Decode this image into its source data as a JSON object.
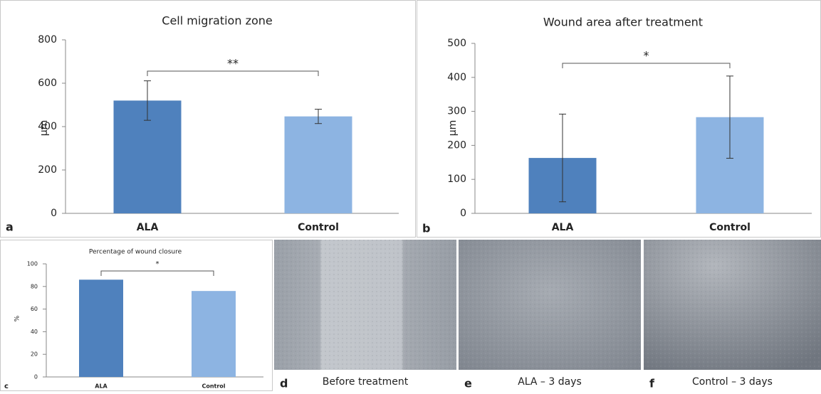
{
  "chart_data": [
    {
      "type": "bar",
      "title": "Cell migration zone",
      "y_label": "µm",
      "panel_label": "a",
      "categories": [
        "ALA",
        "Control"
      ],
      "values": [
        520,
        447
      ],
      "errors": [
        91,
        33
      ],
      "colors": [
        "#4f81bd",
        "#8db4e2"
      ],
      "ylim": [
        0,
        800
      ],
      "yticks": [
        0,
        200,
        400,
        600,
        800
      ],
      "annotation": "**"
    },
    {
      "type": "bar",
      "title": "Wound area after treatment",
      "y_label": "µm",
      "panel_label": "b",
      "categories": [
        "ALA",
        "Control"
      ],
      "values": [
        163,
        283
      ],
      "errors": [
        129,
        121
      ],
      "colors": [
        "#4f81bd",
        "#8db4e2"
      ],
      "ylim": [
        0,
        500
      ],
      "yticks": [
        0,
        100,
        200,
        300,
        400,
        500
      ],
      "annotation": "*"
    },
    {
      "type": "bar",
      "title": "Percentage of wound closure",
      "y_label": "%",
      "panel_label": "c",
      "categories": [
        "ALA",
        "Control"
      ],
      "values": [
        86,
        76
      ],
      "colors": [
        "#4f81bd",
        "#8db4e2"
      ],
      "ylim": [
        0,
        100
      ],
      "yticks": [
        0,
        20,
        40,
        60,
        80,
        100
      ],
      "annotation": "*"
    }
  ],
  "images": [
    {
      "panel_label": "d",
      "caption": "Before treatment"
    },
    {
      "panel_label": "e",
      "caption": "ALA – 3 days"
    },
    {
      "panel_label": "f",
      "caption": "Control – 3 days"
    }
  ]
}
